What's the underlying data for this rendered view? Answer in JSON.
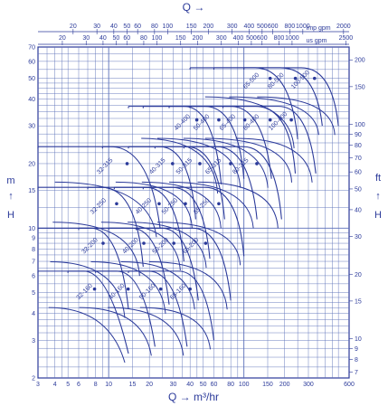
{
  "chart_data": {
    "type": "line",
    "title": "",
    "x_axis_bottom": {
      "label": "Q → m³/hr",
      "scale": "log",
      "range": [
        3,
        600
      ],
      "ticks": [
        "3",
        "4",
        "5",
        "6",
        "8",
        "10",
        "15",
        "20",
        "30",
        "40",
        "50",
        "60",
        "80",
        "100",
        "150",
        "200",
        "300",
        "600"
      ]
    },
    "x_axis_top_row1": {
      "label": "Q →",
      "unit": "Imp gpm",
      "ticks": [
        "20",
        "30",
        "40",
        "50",
        "60",
        "80",
        "100",
        "150",
        "200",
        "300",
        "400",
        "500",
        "600",
        "800",
        "1000",
        "2000"
      ]
    },
    "x_axis_top_row2": {
      "unit": "us gpm",
      "ticks": [
        "20",
        "30",
        "40",
        "50",
        "60",
        "80",
        "100",
        "150",
        "200",
        "300",
        "400",
        "500",
        "600",
        "800",
        "1000",
        "2500"
      ]
    },
    "y_axis_left": {
      "label": "m ↑ H",
      "label_top": "m",
      "label_bottom": "H",
      "scale": "log",
      "range": [
        2,
        70
      ],
      "ticks": [
        "2",
        "3",
        "4",
        "5",
        "6",
        "7",
        "8",
        "9",
        "10",
        "15",
        "20",
        "30",
        "40",
        "50",
        "60",
        "70"
      ]
    },
    "y_axis_right": {
      "label": "ft ↑ H",
      "label_top": "ft",
      "label_bottom": "H",
      "scale": "log",
      "ticks": [
        "7",
        "8",
        "9",
        "10",
        "15",
        "20",
        "30",
        "40",
        "50",
        "60",
        "70",
        "80",
        "90",
        "100",
        "150",
        "200"
      ]
    },
    "grid": true,
    "colors": {
      "line": "#2b3a9a",
      "grid": "#5a6fb8",
      "background": "#ffffff"
    },
    "series": [
      {
        "label": "32-160",
        "band": [
          [
            3,
            6.3
          ],
          [
            10,
            5.2
          ],
          [
            14,
            2.6
          ]
        ]
      },
      {
        "label": "40-160",
        "band": [
          [
            5,
            6.3
          ],
          [
            18,
            5.2
          ],
          [
            22,
            2.8
          ]
        ]
      },
      {
        "label": "50-160",
        "band": [
          [
            8,
            6.3
          ],
          [
            32,
            5.2
          ],
          [
            38,
            2.8
          ]
        ]
      },
      {
        "label": "65-160",
        "band": [
          [
            14,
            6.3
          ],
          [
            52,
            5.2
          ],
          [
            60,
            3.0
          ]
        ]
      },
      {
        "label": "32-200",
        "band": [
          [
            3,
            10
          ],
          [
            12,
            8.5
          ],
          [
            14,
            4.2
          ]
        ]
      },
      {
        "label": "40-200",
        "band": [
          [
            6,
            10
          ],
          [
            24,
            8.5
          ],
          [
            28,
            4.4
          ]
        ]
      },
      {
        "label": "50-200",
        "band": [
          [
            10,
            10
          ],
          [
            40,
            8.5
          ],
          [
            46,
            4.6
          ]
        ]
      },
      {
        "label": "65-200",
        "band": [
          [
            16,
            10
          ],
          [
            70,
            8.5
          ],
          [
            80,
            4.6
          ]
        ]
      },
      {
        "label": "32-250",
        "band": [
          [
            3,
            15.5
          ],
          [
            16,
            13
          ],
          [
            18,
            6.6
          ]
        ]
      },
      {
        "label": "40-250",
        "band": [
          [
            7,
            15.5
          ],
          [
            32,
            13
          ],
          [
            36,
            7
          ]
        ]
      },
      {
        "label": "50-250",
        "band": [
          [
            11,
            15.5
          ],
          [
            50,
            13
          ],
          [
            56,
            7.2
          ]
        ]
      },
      {
        "label": "65-250",
        "band": [
          [
            18,
            15.5
          ],
          [
            90,
            13
          ],
          [
            100,
            7.4
          ]
        ]
      },
      {
        "label": "32-315",
        "band": [
          [
            3,
            24
          ],
          [
            20,
            20
          ],
          [
            24,
            10
          ]
        ]
      },
      {
        "label": "40-315",
        "band": [
          [
            9,
            24
          ],
          [
            40,
            20
          ],
          [
            44,
            11
          ]
        ]
      },
      {
        "label": "50-315",
        "band": [
          [
            14,
            24
          ],
          [
            64,
            20
          ],
          [
            72,
            11
          ]
        ]
      },
      {
        "label": "65-315",
        "band": [
          [
            22,
            24
          ],
          [
            110,
            20
          ],
          [
            125,
            11
          ]
        ]
      },
      {
        "label": "80-315",
        "band": [
          [
            36,
            24
          ],
          [
            170,
            20
          ],
          [
            190,
            11
          ]
        ]
      },
      {
        "label": "40-400",
        "band": [
          [
            14,
            37
          ],
          [
            60,
            32
          ],
          [
            68,
            16
          ]
        ]
      },
      {
        "label": "50-400",
        "band": [
          [
            18,
            37
          ],
          [
            90,
            32
          ],
          [
            100,
            17
          ]
        ]
      },
      {
        "label": "65-400",
        "band": [
          [
            28,
            37
          ],
          [
            140,
            32
          ],
          [
            160,
            17
          ]
        ]
      },
      {
        "label": "80-400",
        "band": [
          [
            40,
            37
          ],
          [
            220,
            32
          ],
          [
            240,
            18
          ]
        ]
      },
      {
        "label": "100-400",
        "band": [
          [
            70,
            37
          ],
          [
            300,
            32
          ],
          [
            340,
            18
          ]
        ]
      },
      {
        "label": "65-500",
        "band": [
          [
            40,
            56
          ],
          [
            220,
            50
          ],
          [
            250,
            26
          ]
        ]
      },
      {
        "label": "80-500",
        "band": [
          [
            60,
            56
          ],
          [
            340,
            50
          ],
          [
            380,
            30
          ]
        ]
      },
      {
        "label": "100-500",
        "band": [
          [
            100,
            56
          ],
          [
            450,
            50
          ],
          [
            500,
            30
          ]
        ]
      }
    ]
  }
}
